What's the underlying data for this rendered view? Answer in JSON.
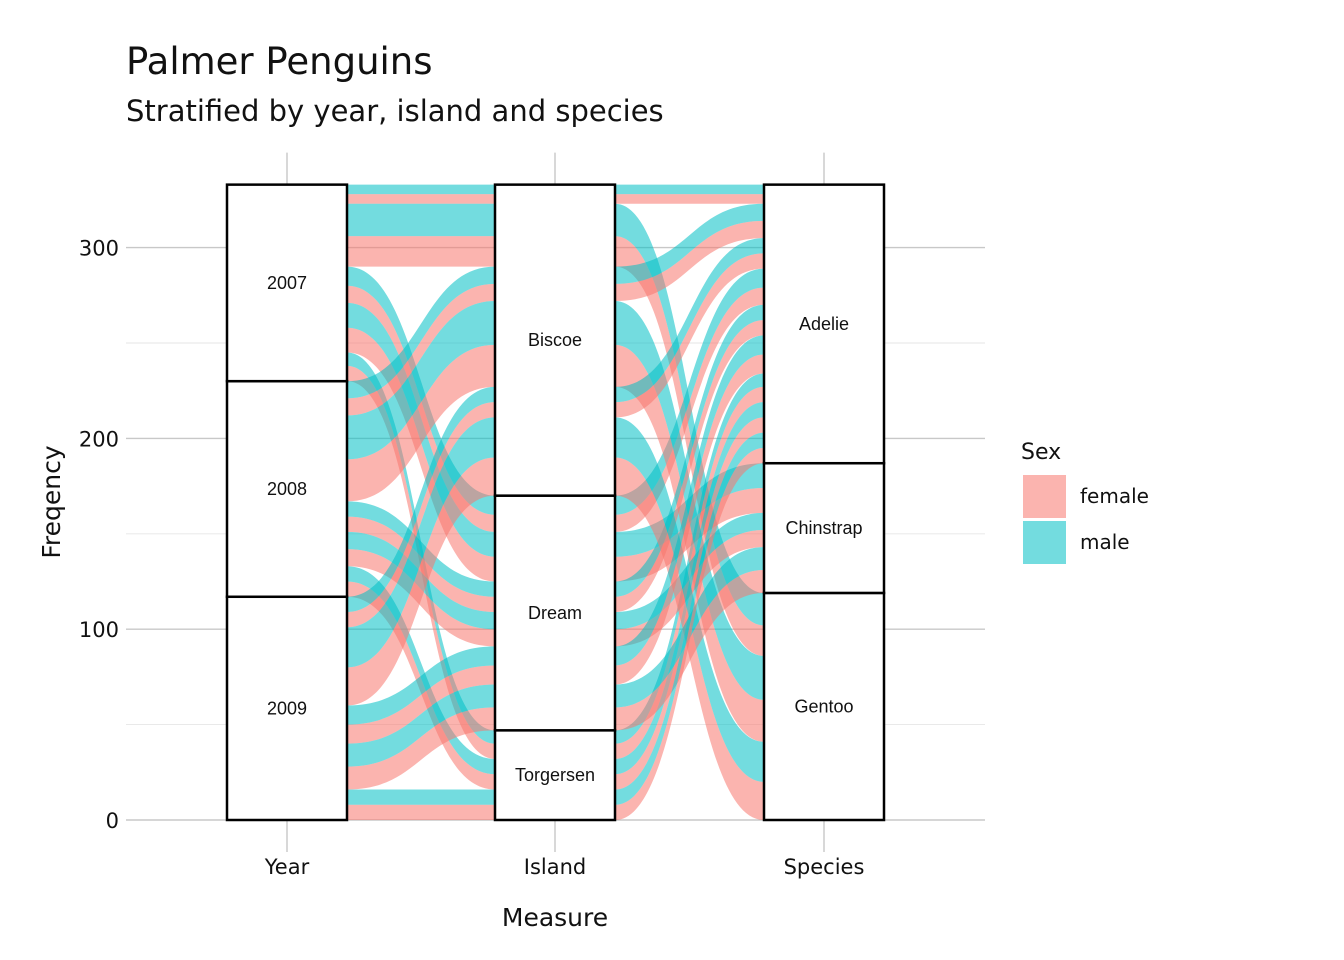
{
  "title": "Palmer Penguins",
  "subtitle": "Stratified by year, island and species",
  "colors": {
    "female": "#F8766D",
    "male": "#00BFC4",
    "grid": "#cccccc",
    "box": "#000000"
  },
  "chart_data": {
    "type": "alluvial",
    "title": "Palmer Penguins",
    "subtitle": "Stratified by year, island and species",
    "xlabel": "Measure",
    "ylabel": "Freqency",
    "ylim": [
      0,
      333
    ],
    "yticks": [
      0,
      100,
      200,
      300
    ],
    "grid": true,
    "legend": {
      "title": "Sex",
      "position": "right",
      "entries": [
        "female",
        "male"
      ]
    },
    "axes": [
      {
        "name": "Year",
        "strata": [
          {
            "label": "2009",
            "count": 117
          },
          {
            "label": "2008",
            "count": 113
          },
          {
            "label": "2007",
            "count": 103
          }
        ]
      },
      {
        "name": "Island",
        "strata": [
          {
            "label": "Torgersen",
            "count": 47
          },
          {
            "label": "Dream",
            "count": 123
          },
          {
            "label": "Biscoe",
            "count": 163
          }
        ]
      },
      {
        "name": "Species",
        "strata": [
          {
            "label": "Gentoo",
            "count": 119
          },
          {
            "label": "Chinstrap",
            "count": 68
          },
          {
            "label": "Adelie",
            "count": 146
          }
        ]
      }
    ],
    "flows": [
      {
        "year": "2007",
        "island": "Biscoe",
        "species": "Adelie",
        "sex": "female",
        "count": 5
      },
      {
        "year": "2007",
        "island": "Biscoe",
        "species": "Adelie",
        "sex": "male",
        "count": 5
      },
      {
        "year": "2007",
        "island": "Biscoe",
        "species": "Gentoo",
        "sex": "female",
        "count": 16
      },
      {
        "year": "2007",
        "island": "Biscoe",
        "species": "Gentoo",
        "sex": "male",
        "count": 17
      },
      {
        "year": "2007",
        "island": "Dream",
        "species": "Adelie",
        "sex": "female",
        "count": 9
      },
      {
        "year": "2007",
        "island": "Dream",
        "species": "Adelie",
        "sex": "male",
        "count": 10
      },
      {
        "year": "2007",
        "island": "Dream",
        "species": "Chinstrap",
        "sex": "female",
        "count": 13
      },
      {
        "year": "2007",
        "island": "Dream",
        "species": "Chinstrap",
        "sex": "male",
        "count": 13
      },
      {
        "year": "2007",
        "island": "Torgersen",
        "species": "Adelie",
        "sex": "female",
        "count": 8
      },
      {
        "year": "2007",
        "island": "Torgersen",
        "species": "Adelie",
        "sex": "male",
        "count": 7
      },
      {
        "year": "2008",
        "island": "Biscoe",
        "species": "Adelie",
        "sex": "female",
        "count": 9
      },
      {
        "year": "2008",
        "island": "Biscoe",
        "species": "Adelie",
        "sex": "male",
        "count": 9
      },
      {
        "year": "2008",
        "island": "Biscoe",
        "species": "Gentoo",
        "sex": "female",
        "count": 22
      },
      {
        "year": "2008",
        "island": "Biscoe",
        "species": "Gentoo",
        "sex": "male",
        "count": 23
      },
      {
        "year": "2008",
        "island": "Dream",
        "species": "Adelie",
        "sex": "female",
        "count": 8
      },
      {
        "year": "2008",
        "island": "Dream",
        "species": "Adelie",
        "sex": "male",
        "count": 8
      },
      {
        "year": "2008",
        "island": "Dream",
        "species": "Chinstrap",
        "sex": "female",
        "count": 9
      },
      {
        "year": "2008",
        "island": "Dream",
        "species": "Chinstrap",
        "sex": "male",
        "count": 9
      },
      {
        "year": "2008",
        "island": "Torgersen",
        "species": "Adelie",
        "sex": "female",
        "count": 8
      },
      {
        "year": "2008",
        "island": "Torgersen",
        "species": "Adelie",
        "sex": "male",
        "count": 8
      },
      {
        "year": "2009",
        "island": "Biscoe",
        "species": "Adelie",
        "sex": "female",
        "count": 8
      },
      {
        "year": "2009",
        "island": "Biscoe",
        "species": "Adelie",
        "sex": "male",
        "count": 8
      },
      {
        "year": "2009",
        "island": "Biscoe",
        "species": "Gentoo",
        "sex": "female",
        "count": 20
      },
      {
        "year": "2009",
        "island": "Biscoe",
        "species": "Gentoo",
        "sex": "male",
        "count": 21
      },
      {
        "year": "2009",
        "island": "Dream",
        "species": "Adelie",
        "sex": "female",
        "count": 10
      },
      {
        "year": "2009",
        "island": "Dream",
        "species": "Adelie",
        "sex": "male",
        "count": 10
      },
      {
        "year": "2009",
        "island": "Dream",
        "species": "Chinstrap",
        "sex": "female",
        "count": 12
      },
      {
        "year": "2009",
        "island": "Dream",
        "species": "Chinstrap",
        "sex": "male",
        "count": 12
      },
      {
        "year": "2009",
        "island": "Torgersen",
        "species": "Adelie",
        "sex": "female",
        "count": 8
      },
      {
        "year": "2009",
        "island": "Torgersen",
        "species": "Adelie",
        "sex": "male",
        "count": 8
      }
    ]
  }
}
